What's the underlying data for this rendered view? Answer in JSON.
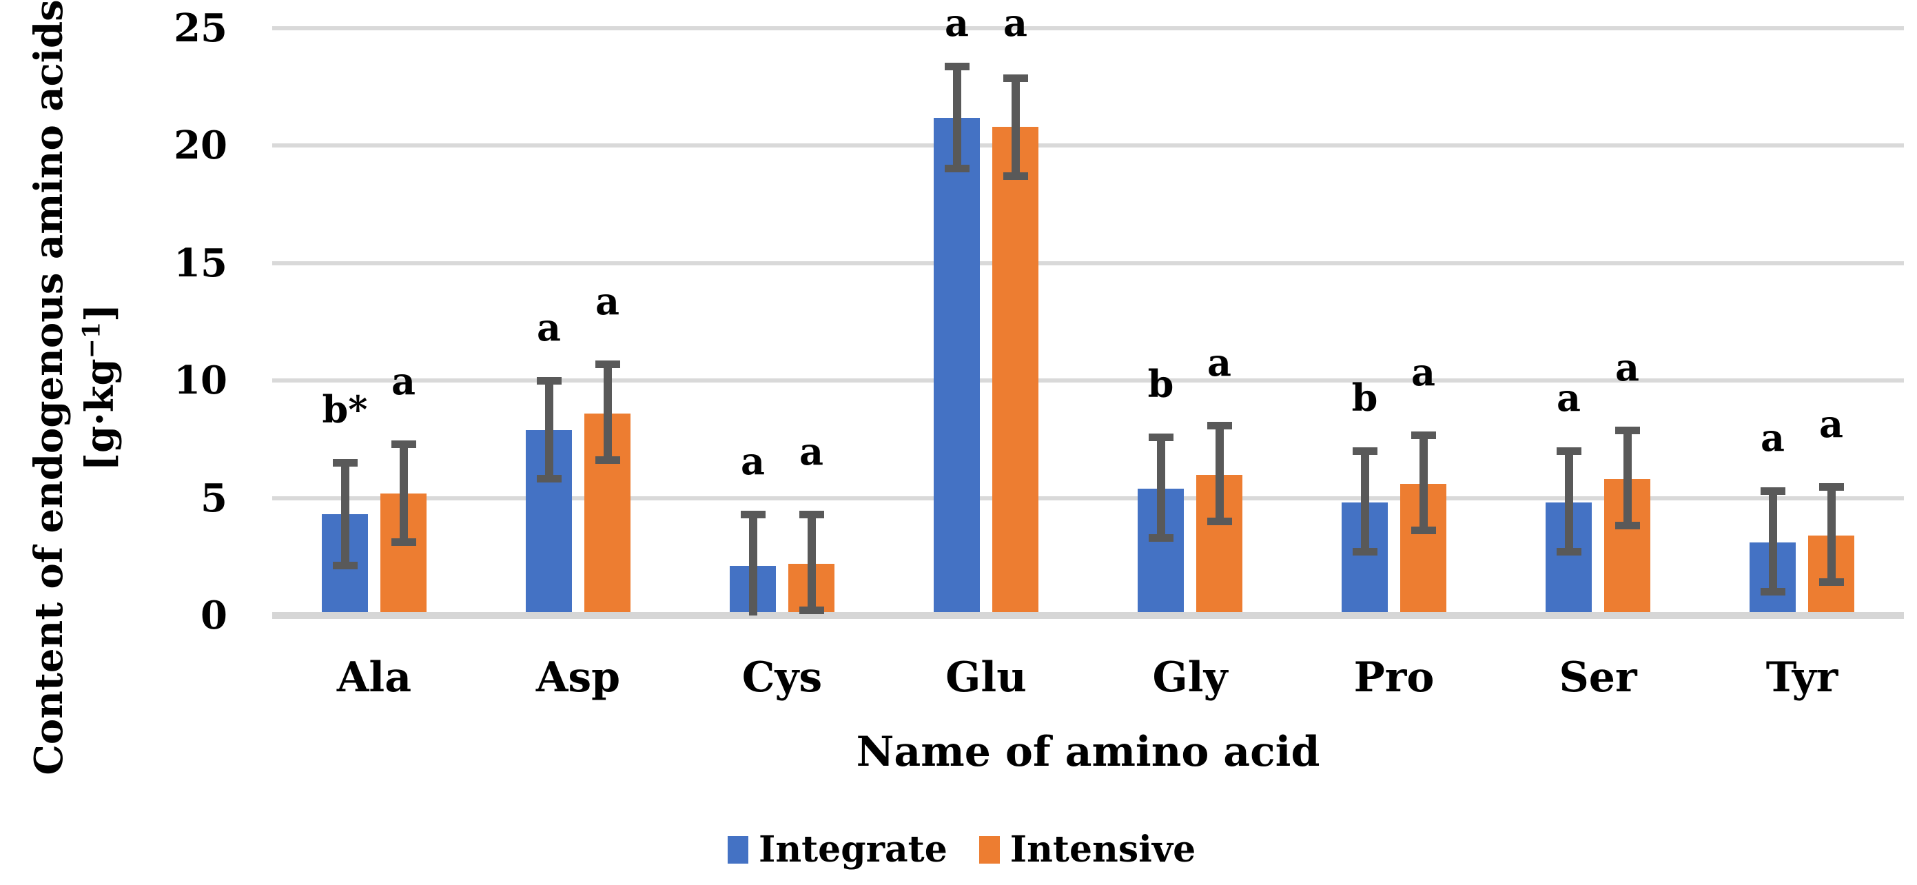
{
  "chart_data": {
    "type": "bar",
    "title": "",
    "xlabel": "Name of amino acid",
    "ylabel": "Content of endogenous amino acids [g·kg−1]",
    "ylabel_line1": "Content of endogenous amino acids",
    "ylabel_unit_prefix": "[g·kg",
    "ylabel_unit_exponent": "−1",
    "ylabel_unit_suffix": "]",
    "categories": [
      "Ala",
      "Asp",
      "Cys",
      "Glu",
      "Gly",
      "Pro",
      "Ser",
      "Tyr"
    ],
    "y_ticks": [
      0,
      5,
      10,
      15,
      20,
      25
    ],
    "ylim": [
      0,
      25
    ],
    "grid": true,
    "legend_position": "bottom",
    "gridline_color": "#D9D9D9",
    "error_bar_color": "#595959",
    "series": [
      {
        "name": "Integrate",
        "color": "#4472C4",
        "values": [
          4.3,
          7.9,
          2.1,
          21.2,
          5.4,
          4.8,
          4.8,
          3.1
        ],
        "whisker_low": [
          2.1,
          5.8,
          0.0,
          19.0,
          3.3,
          2.7,
          2.7,
          1.0
        ],
        "whisker_high": [
          6.5,
          10.0,
          4.3,
          23.4,
          7.6,
          7.0,
          7.0,
          5.3
        ],
        "letters": [
          "b*",
          "a",
          "a",
          "a",
          "b",
          "b",
          "a",
          "a"
        ]
      },
      {
        "name": "Intensive",
        "color": "#ED7D31",
        "values": [
          5.2,
          8.6,
          2.2,
          20.8,
          6.0,
          5.6,
          5.8,
          3.4
        ],
        "whisker_low": [
          3.1,
          6.6,
          0.2,
          18.7,
          4.0,
          3.6,
          3.8,
          1.4
        ],
        "whisker_high": [
          7.3,
          10.7,
          4.3,
          22.9,
          8.1,
          7.7,
          7.9,
          5.5
        ],
        "letters": [
          "a",
          "a",
          "a",
          "a",
          "a",
          "a",
          "a",
          "a"
        ]
      }
    ]
  }
}
